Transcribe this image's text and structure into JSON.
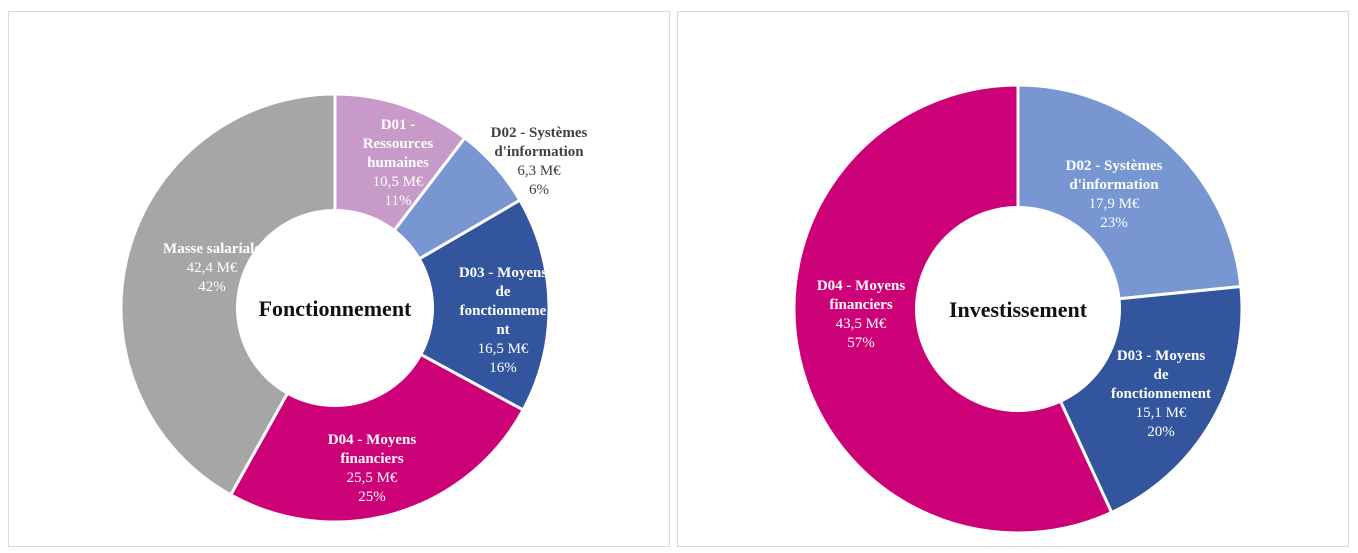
{
  "chart_data": [
    {
      "type": "pie",
      "variant": "donut",
      "title": "Fonctionnement",
      "slices": [
        {
          "name_lines": [
            "D01 -",
            "Ressources",
            "humaines"
          ],
          "value": "10,5 M€",
          "percent": "11%",
          "num": 10.5,
          "color": "#c89ac9",
          "label_color": "#ffffff"
        },
        {
          "name_lines": [
            "D02 - Systèmes",
            "d'information"
          ],
          "value": "6,3 M€",
          "percent": "6%",
          "num": 6.3,
          "color": "#7896d2",
          "label_color": "#404040"
        },
        {
          "name_lines": [
            "D03 - Moyens",
            "de",
            "fonctionneme",
            "nt"
          ],
          "value": "16,5 M€",
          "percent": "16%",
          "num": 16.5,
          "color": "#33559e",
          "label_color": "#ffffff"
        },
        {
          "name_lines": [
            "D04 - Moyens",
            "financiers"
          ],
          "value": "25,5 M€",
          "percent": "25%",
          "num": 25.5,
          "color": "#cc0077",
          "label_color": "#ffffff"
        },
        {
          "name_lines": [
            "Masse salariale"
          ],
          "value": "42,4 M€",
          "percent": "42%",
          "num": 42.4,
          "color": "#a6a6a6",
          "label_color": "#ffffff"
        }
      ]
    },
    {
      "type": "pie",
      "variant": "donut",
      "title": "Investissement",
      "slices": [
        {
          "name_lines": [
            "D02 - Systèmes",
            "d'information"
          ],
          "value": "17,9 M€",
          "percent": "23%",
          "num": 17.9,
          "color": "#7896d2",
          "label_color": "#ffffff"
        },
        {
          "name_lines": [
            "D03 - Moyens",
            "de",
            "fonctionnement"
          ],
          "value": "15,1 M€",
          "percent": "20%",
          "num": 15.1,
          "color": "#33559e",
          "label_color": "#ffffff"
        },
        {
          "name_lines": [
            "D04 - Moyens",
            "financiers"
          ],
          "value": "43,5 M€",
          "percent": "57%",
          "num": 43.5,
          "color": "#cc0077",
          "label_color": "#ffffff"
        }
      ]
    }
  ]
}
